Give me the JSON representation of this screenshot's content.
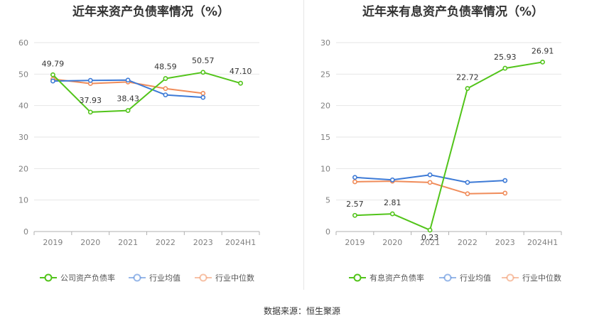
{
  "source": "数据来源：恒生聚源",
  "chart_data": [
    {
      "type": "line",
      "title": "近年来资产负债率情况（%）",
      "categories": [
        "2019",
        "2020",
        "2021",
        "2022",
        "2023",
        "2024H1"
      ],
      "ylim": [
        0,
        60
      ],
      "yticks": [
        0,
        10,
        20,
        30,
        40,
        50,
        60
      ],
      "grid": true,
      "legend_position": "bottom",
      "series": [
        {
          "name": "公司资产负债率",
          "color": "#52c41a",
          "values": [
            49.79,
            37.93,
            38.43,
            48.59,
            50.57,
            47.1
          ],
          "labels": [
            "49.79",
            "37.93",
            "38.43",
            "48.59",
            "50.57",
            "47.10"
          ]
        },
        {
          "name": "行业均值",
          "color": "#3d7ad6",
          "values": [
            47.8,
            48.0,
            48.1,
            43.4,
            42.6,
            null
          ]
        },
        {
          "name": "行业中位数",
          "color": "#f08c5a",
          "values": [
            48.4,
            47.0,
            47.5,
            45.4,
            43.9,
            null
          ]
        }
      ]
    },
    {
      "type": "line",
      "title": "近年来有息资产负债率情况（%）",
      "categories": [
        "2019",
        "2020",
        "2021",
        "2022",
        "2023",
        "2024H1"
      ],
      "ylim": [
        0,
        30
      ],
      "yticks": [
        0,
        5,
        10,
        15,
        20,
        25,
        30
      ],
      "grid": true,
      "legend_position": "bottom",
      "series": [
        {
          "name": "有息资产负债率",
          "color": "#52c41a",
          "values": [
            2.57,
            2.81,
            0.23,
            22.72,
            25.93,
            26.91
          ],
          "labels": [
            "2.57",
            "2.81",
            "0.23",
            "22.72",
            "25.93",
            "26.91"
          ]
        },
        {
          "name": "行业均值",
          "color": "#3d7ad6",
          "values": [
            8.6,
            8.2,
            9.0,
            7.8,
            8.1,
            null
          ]
        },
        {
          "name": "行业中位数",
          "color": "#f08c5a",
          "values": [
            7.9,
            8.0,
            7.8,
            6.0,
            6.1,
            null
          ]
        }
      ]
    }
  ]
}
